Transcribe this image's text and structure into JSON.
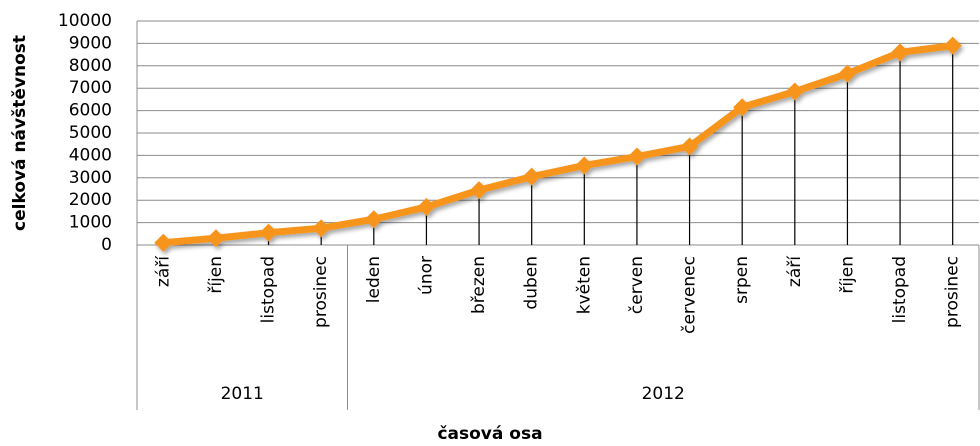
{
  "chart_data": {
    "type": "line",
    "x_label": "časová osa",
    "y_label": "celková návštěvnost",
    "categories": [
      "září",
      "říjen",
      "listopad",
      "prosinec",
      "leden",
      "únor",
      "březen",
      "duben",
      "květen",
      "červen",
      "červenec",
      "srpen",
      "září",
      "říjen",
      "listopad",
      "prosinec"
    ],
    "groups": [
      {
        "label": "2011",
        "span": 4
      },
      {
        "label": "2012",
        "span": 12
      }
    ],
    "values": [
      100,
      300,
      550,
      750,
      1150,
      1700,
      2450,
      3050,
      3550,
      3950,
      4400,
      6150,
      6850,
      7650,
      8600,
      8900
    ],
    "color": "#f7941d",
    "drop_lines": true,
    "ylim": [
      0,
      10000
    ],
    "yticks": [
      0,
      1000,
      2000,
      3000,
      4000,
      5000,
      6000,
      7000,
      8000,
      9000,
      10000
    ],
    "grid": true
  }
}
